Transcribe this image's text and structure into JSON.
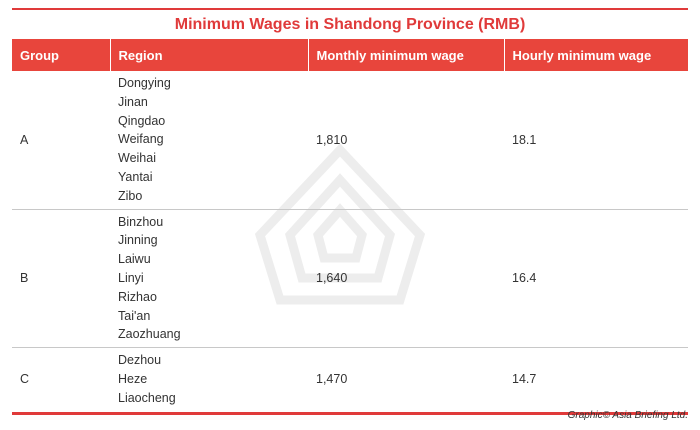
{
  "title": "Minimum Wages in Shandong Province (RMB)",
  "headers": [
    "Group",
    "Region",
    "Monthly minimum wage",
    "Hourly minimum wage"
  ],
  "rows": [
    {
      "group": "A",
      "regions": [
        "Dongying",
        "Jinan",
        "Qingdao",
        "Weifang",
        "Weihai",
        "Yantai",
        "Zibo"
      ],
      "monthly": "1,810",
      "hourly": "18.1"
    },
    {
      "group": "B",
      "regions": [
        "Binzhou",
        "Jinning",
        "Laiwu",
        "Linyi",
        "Rizhao",
        "Tai'an",
        "Zaozhuang"
      ],
      "monthly": "1,640",
      "hourly": "16.4"
    },
    {
      "group": "C",
      "regions": [
        "Dezhou",
        "Heze",
        "Liaocheng"
      ],
      "monthly": "1,470",
      "hourly": "14.7"
    }
  ],
  "credit": "Graphic© Asia Briefing Ltd.",
  "colors": {
    "accent": "#e8453c",
    "title": "#e03a3a",
    "divider": "#c8c8c8"
  }
}
